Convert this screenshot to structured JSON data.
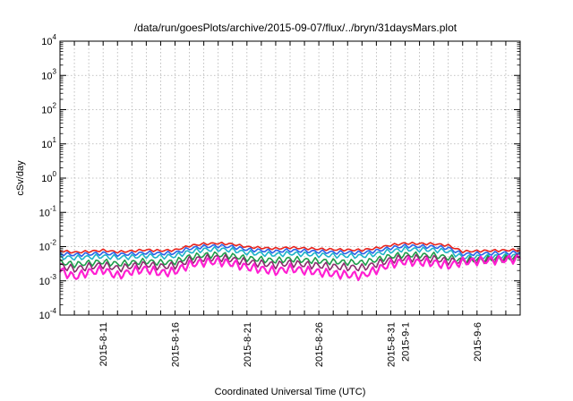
{
  "chart_data": {
    "type": "line",
    "title": "/data/run/goesPlots/archive/2015-09-07/flux/../bryn/31daysMars.plot",
    "xlabel": "Coordinated Universal Time (UTC)",
    "ylabel": "cSv/day",
    "yscale": "log",
    "ylim": [
      0.0001,
      10000
    ],
    "xlim": [
      "2015-08-08",
      "2015-09-09"
    ],
    "grid": true,
    "legend": "none",
    "y_ticks": [
      {
        "base": "10",
        "exp": "-4",
        "value": 0.0001
      },
      {
        "base": "10",
        "exp": "-3",
        "value": 0.001
      },
      {
        "base": "10",
        "exp": "-2",
        "value": 0.01
      },
      {
        "base": "10",
        "exp": "-1",
        "value": 0.1
      },
      {
        "base": "10",
        "exp": "0",
        "value": 1
      },
      {
        "base": "10",
        "exp": "1",
        "value": 10
      },
      {
        "base": "10",
        "exp": "2",
        "value": 100
      },
      {
        "base": "10",
        "exp": "3",
        "value": 1000
      },
      {
        "base": "10",
        "exp": "4",
        "value": 10000
      }
    ],
    "x_ticks": [
      {
        "label": "2015-8-11",
        "date": "2015-08-11"
      },
      {
        "label": "2015-8-16",
        "date": "2015-08-16"
      },
      {
        "label": "2015-8-21",
        "date": "2015-08-21"
      },
      {
        "label": "2015-8-26",
        "date": "2015-08-26"
      },
      {
        "label": "2015-8-31",
        "date": "2015-08-31"
      },
      {
        "label": "2015-9-1",
        "date": "2015-09-01"
      },
      {
        "label": "2015-9-6",
        "date": "2015-09-06"
      }
    ],
    "x": [
      "2015-08-08",
      "2015-08-09",
      "2015-08-10",
      "2015-08-11",
      "2015-08-12",
      "2015-08-13",
      "2015-08-14",
      "2015-08-15",
      "2015-08-16",
      "2015-08-17",
      "2015-08-18",
      "2015-08-19",
      "2015-08-20",
      "2015-08-21",
      "2015-08-22",
      "2015-08-23",
      "2015-08-24",
      "2015-08-25",
      "2015-08-26",
      "2015-08-27",
      "2015-08-28",
      "2015-08-29",
      "2015-08-30",
      "2015-08-31",
      "2015-09-01",
      "2015-09-02",
      "2015-09-03",
      "2015-09-04",
      "2015-09-05",
      "2015-09-06",
      "2015-09-07",
      "2015-09-08",
      "2015-09-09"
    ],
    "series": [
      {
        "color": "#e8231c",
        "values": [
          0.0075,
          0.0068,
          0.0072,
          0.0078,
          0.007,
          0.0074,
          0.008,
          0.0076,
          0.0079,
          0.0105,
          0.012,
          0.0125,
          0.0118,
          0.0098,
          0.0092,
          0.0087,
          0.0094,
          0.0089,
          0.0085,
          0.0082,
          0.008,
          0.0079,
          0.009,
          0.011,
          0.0125,
          0.0122,
          0.012,
          0.0108,
          0.0072,
          0.0074,
          0.0076,
          0.0078,
          0.008
        ]
      },
      {
        "color": "#2a62e8",
        "values": [
          0.0062,
          0.0058,
          0.006,
          0.0064,
          0.0059,
          0.0061,
          0.0066,
          0.0063,
          0.0065,
          0.0088,
          0.01,
          0.0104,
          0.0098,
          0.0082,
          0.0077,
          0.0072,
          0.0078,
          0.0074,
          0.0071,
          0.0068,
          0.0067,
          0.0066,
          0.0075,
          0.0092,
          0.0104,
          0.0101,
          0.0099,
          0.009,
          0.006,
          0.0062,
          0.0063,
          0.0065,
          0.0067
        ]
      },
      {
        "color": "#1fb4c8",
        "values": [
          0.005,
          0.0047,
          0.0049,
          0.0052,
          0.0048,
          0.005,
          0.0054,
          0.0051,
          0.0053,
          0.0071,
          0.0081,
          0.0084,
          0.0079,
          0.0066,
          0.0062,
          0.0058,
          0.0063,
          0.006,
          0.0057,
          0.0055,
          0.0054,
          0.0053,
          0.0061,
          0.0074,
          0.0084,
          0.0082,
          0.008,
          0.0073,
          0.0049,
          0.005,
          0.0051,
          0.0053,
          0.0054
        ]
      },
      {
        "color": "#1e9e4a",
        "values": [
          0.0035,
          0.003,
          0.0033,
          0.0036,
          0.0031,
          0.0034,
          0.0037,
          0.0034,
          0.0036,
          0.005,
          0.0056,
          0.0058,
          0.0053,
          0.0045,
          0.0042,
          0.0039,
          0.0043,
          0.004,
          0.0038,
          0.0036,
          0.0035,
          0.0034,
          0.0041,
          0.0052,
          0.0058,
          0.0056,
          0.0055,
          0.0048,
          0.004,
          0.0042,
          0.0044,
          0.0046,
          0.0048
        ]
      },
      {
        "color": "#8b2c6e",
        "values": [
          0.0028,
          0.0022,
          0.0026,
          0.0029,
          0.0023,
          0.0027,
          0.003,
          0.0026,
          0.0028,
          0.004,
          0.0045,
          0.0047,
          0.0042,
          0.0035,
          0.0032,
          0.0029,
          0.0033,
          0.003,
          0.0028,
          0.0026,
          0.0025,
          0.0024,
          0.0031,
          0.0041,
          0.0047,
          0.0045,
          0.0044,
          0.0038,
          0.0038,
          0.004,
          0.0042,
          0.0044,
          0.0046
        ]
      },
      {
        "color": "#ff1fd2",
        "values": [
          0.002,
          0.0013,
          0.0018,
          0.0021,
          0.0014,
          0.0019,
          0.0022,
          0.0017,
          0.0019,
          0.003,
          0.0035,
          0.0037,
          0.0032,
          0.0025,
          0.0022,
          0.0019,
          0.0023,
          0.002,
          0.0018,
          0.0016,
          0.0015,
          0.0014,
          0.0021,
          0.0031,
          0.0037,
          0.0035,
          0.0034,
          0.0028,
          0.0036,
          0.0038,
          0.004,
          0.0042,
          0.0044
        ]
      }
    ]
  }
}
